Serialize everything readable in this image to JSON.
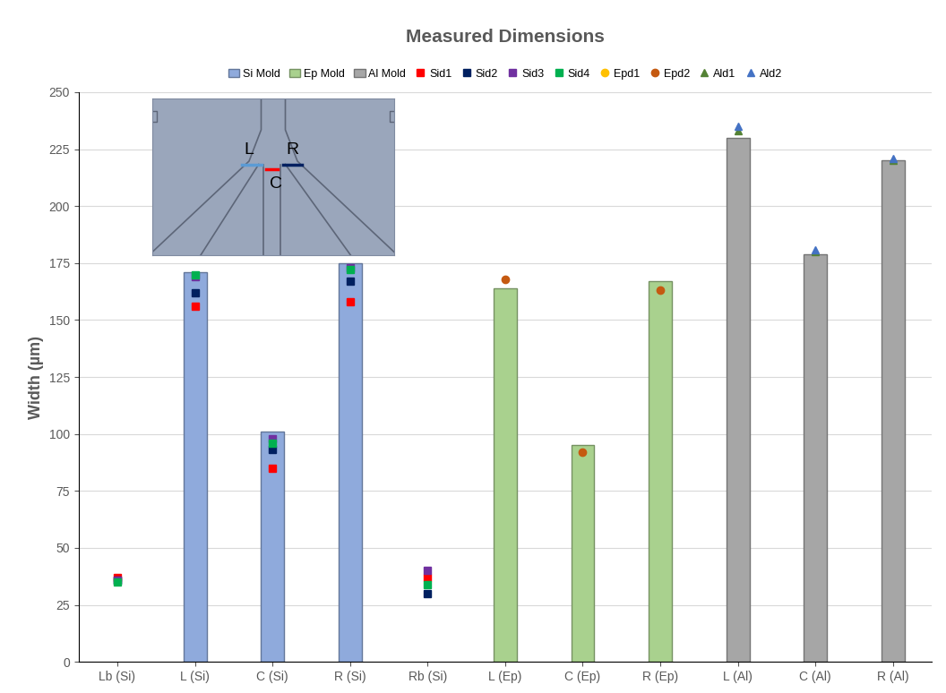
{
  "chart_data": {
    "type": "bar",
    "title": "Measured Dimensions",
    "y_label": "Width (µm)",
    "categories": [
      "Lb (Si)",
      "L (Si)",
      "C (Si)",
      "R (Si)",
      "Rb (Si)",
      "L (Ep)",
      "C (Ep)",
      "R (Ep)",
      "L (Al)",
      "C (Al)",
      "R (Al)"
    ],
    "series": [
      {
        "name": "Si Mold",
        "type": "bar",
        "color": "#8faadc",
        "values": [
          null,
          171,
          101,
          175,
          null,
          null,
          null,
          null,
          null,
          null,
          null
        ]
      },
      {
        "name": "Ep Mold",
        "type": "bar",
        "color": "#a9d18e",
        "values": [
          null,
          null,
          null,
          null,
          null,
          164,
          95,
          167,
          null,
          null,
          null
        ]
      },
      {
        "name": "Al Mold",
        "type": "bar",
        "color": "#a6a6a6",
        "values": [
          null,
          null,
          null,
          null,
          null,
          null,
          null,
          null,
          230,
          179,
          220
        ]
      },
      {
        "name": "Sid1",
        "type": "scatter",
        "color": "#ff0000",
        "marker": "square",
        "values": [
          37,
          156,
          85,
          158,
          37,
          null,
          null,
          null,
          null,
          null,
          null
        ]
      },
      {
        "name": "Sid2",
        "type": "scatter",
        "color": "#002060",
        "marker": "square",
        "values": [
          36,
          162,
          93,
          167,
          30,
          null,
          null,
          null,
          null,
          null,
          null
        ]
      },
      {
        "name": "Sid3",
        "type": "scatter",
        "color": "#7030a0",
        "marker": "square",
        "values": [
          36,
          169,
          98,
          173,
          40,
          null,
          null,
          null,
          null,
          null,
          null
        ]
      },
      {
        "name": "Sid4",
        "type": "scatter",
        "color": "#00b050",
        "marker": "square",
        "values": [
          35,
          170,
          96,
          172,
          34,
          null,
          null,
          null,
          null,
          null,
          null
        ]
      },
      {
        "name": "Epd1",
        "type": "scatter",
        "color": "#ffc000",
        "marker": "circle",
        "values": [
          null,
          null,
          null,
          null,
          null,
          null,
          null,
          null,
          null,
          null,
          null
        ]
      },
      {
        "name": "Epd2",
        "type": "scatter",
        "color": "#c55a11",
        "marker": "circle",
        "values": [
          null,
          null,
          null,
          null,
          null,
          168,
          92,
          163,
          null,
          null,
          null
        ]
      },
      {
        "name": "Ald1",
        "type": "scatter",
        "color": "#548235",
        "marker": "triangle",
        "values": [
          null,
          null,
          null,
          null,
          null,
          null,
          null,
          null,
          233,
          180,
          220
        ]
      },
      {
        "name": "Ald2",
        "type": "scatter",
        "color": "#4472c4",
        "marker": "triangle",
        "values": [
          null,
          null,
          null,
          null,
          null,
          null,
          null,
          null,
          235,
          181,
          221
        ]
      }
    ],
    "ylim": [
      0,
      250
    ],
    "yticks": [
      0,
      25,
      50,
      75,
      100,
      125,
      150,
      175,
      200,
      225,
      250
    ],
    "grid": true,
    "legend": "top",
    "annotations": [
      "L",
      "C",
      "R"
    ]
  }
}
